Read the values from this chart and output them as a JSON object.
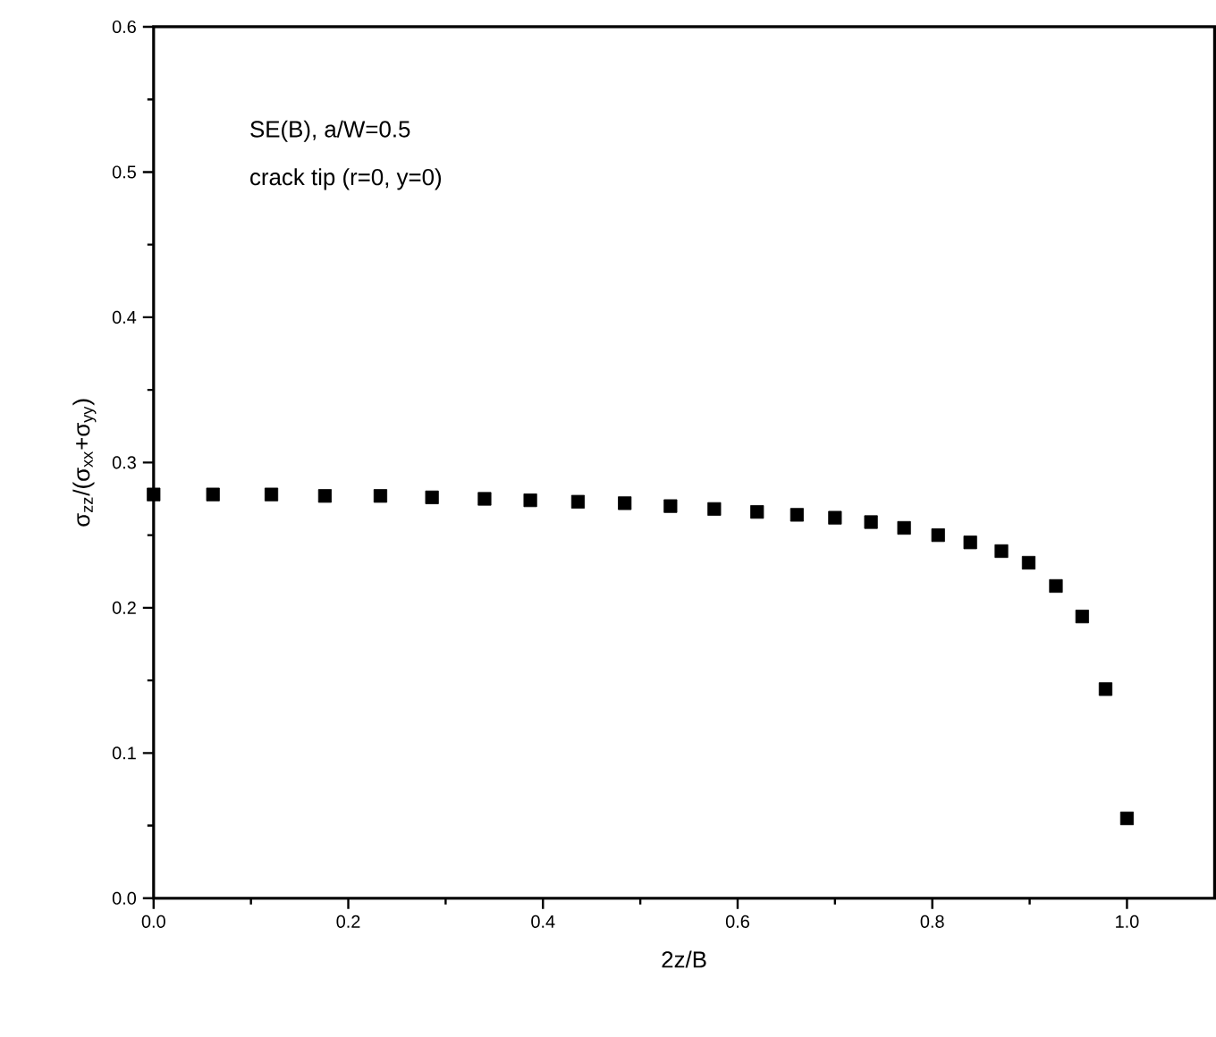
{
  "chart_data": {
    "type": "scatter",
    "xlabel": "2z/B",
    "ylabel": "σ$_{zz}$/(σ$_{xx}$+σ$_{yy}$)",
    "annotations": [
      "SE(B), a/W=0.5",
      "crack tip (r=0, y=0)"
    ],
    "xlim": [
      0,
      1.09
    ],
    "ylim": [
      0,
      0.6
    ],
    "xticks": [
      {
        "value": 0,
        "label": "0.0"
      },
      0.2,
      0.4,
      0.6,
      0.8,
      {
        "value": 1,
        "label": "1.0"
      }
    ],
    "yticks": [
      {
        "value": 0,
        "label": "0.0"
      },
      0.1,
      0.2,
      0.3,
      0.4,
      0.5,
      0.6
    ],
    "marker": "square",
    "series": [
      {
        "color": "#000000",
        "x": [
          0,
          0.061,
          0.121,
          0.176,
          0.233,
          0.286,
          0.34,
          0.387,
          0.436,
          0.484,
          0.531,
          0.576,
          0.62,
          0.661,
          0.7,
          0.737,
          0.771,
          0.806,
          0.839,
          0.871,
          0.899,
          0.927,
          0.954,
          0.978,
          1.0
        ],
        "values": [
          0.278,
          0.278,
          0.278,
          0.277,
          0.277,
          0.276,
          0.275,
          0.274,
          0.273,
          0.272,
          0.27,
          0.268,
          0.266,
          0.264,
          0.262,
          0.259,
          0.255,
          0.25,
          0.245,
          0.239,
          0.231,
          0.215,
          0.194,
          0.144,
          0.055
        ]
      }
    ]
  }
}
